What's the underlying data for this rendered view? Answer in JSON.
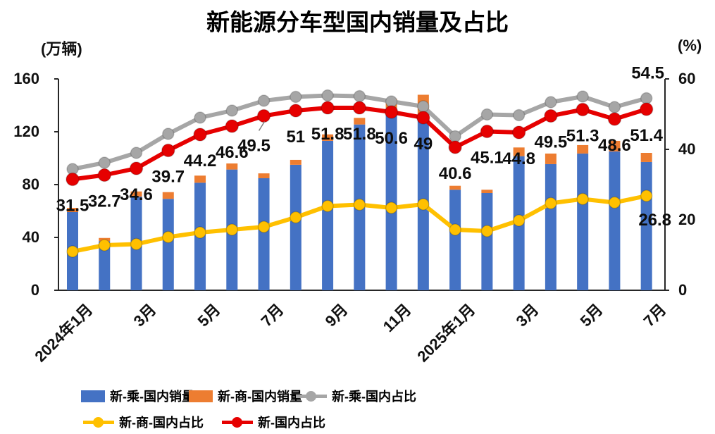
{
  "title": "新能源分车型国内销量及占比",
  "left_axis": {
    "unit": "(万辆)",
    "ticks": [
      160,
      120,
      80,
      40,
      0
    ],
    "max": 160
  },
  "right_axis": {
    "unit": "(%)",
    "ticks": [
      60,
      40,
      20,
      0
    ],
    "max": 60
  },
  "x_axis": {
    "visible_labels": [
      {
        "index": 0,
        "text": "2024年1月"
      },
      {
        "index": 2,
        "text": "3月"
      },
      {
        "index": 4,
        "text": "5月"
      },
      {
        "index": 6,
        "text": "7月"
      },
      {
        "index": 8,
        "text": "9月"
      },
      {
        "index": 10,
        "text": "11月"
      },
      {
        "index": 12,
        "text": "2025年1月"
      },
      {
        "index": 14,
        "text": "3月"
      },
      {
        "index": 16,
        "text": "5月"
      },
      {
        "index": 18,
        "text": "7月"
      }
    ]
  },
  "chart_data": {
    "type": "bar",
    "subtype": "stacked bars with overlaid lines, dual axes",
    "n_points": 19,
    "x_range_note": "2024年1月 to 2025年7月, monthly",
    "left_axis_range": [
      0,
      160
    ],
    "right_axis_range": [
      0,
      60
    ],
    "grid": "off",
    "series": [
      {
        "name": "新-乘-国内销量",
        "type": "bar",
        "axis": "left",
        "color": "#4472c4",
        "values": [
          59.2,
          37.2,
          70.9,
          69.2,
          81.4,
          91.4,
          84.8,
          95.0,
          113.1,
          125.5,
          138.0,
          130.0,
          76.1,
          73.6,
          101.5,
          95.5,
          103.5,
          105.1,
          97.1
        ]
      },
      {
        "name": "新-商-国内销量",
        "type": "bar",
        "axis": "left",
        "color": "#ed7d31",
        "values": [
          3.2,
          2.4,
          3.9,
          5.1,
          5.4,
          4.6,
          3.7,
          3.7,
          4.9,
          5.0,
          7.0,
          18.0,
          3.0,
          2.5,
          6.6,
          8.0,
          6.4,
          8.0,
          6.9
        ]
      },
      {
        "name": "新-乘-国内占比",
        "type": "line",
        "axis": "right",
        "color": "#a6a6a6",
        "values": [
          34.4,
          36.2,
          39.0,
          44.4,
          49.0,
          51.0,
          53.8,
          54.9,
          55.3,
          55.1,
          53.6,
          52.2,
          43.7,
          49.9,
          49.7,
          53.4,
          55.0,
          52.0,
          54.5
        ],
        "last_label": "54.5"
      },
      {
        "name": "新-商-国内占比",
        "type": "line",
        "axis": "right",
        "color": "#ffc000",
        "values": [
          11.0,
          12.8,
          13.1,
          15.1,
          16.4,
          17.2,
          18.0,
          20.7,
          23.9,
          24.3,
          23.4,
          24.4,
          17.2,
          16.8,
          19.8,
          24.7,
          25.9,
          24.9,
          26.8
        ],
        "last_label": "26.8"
      },
      {
        "name": "新-国内占比",
        "type": "line",
        "axis": "right",
        "color": "#e60000",
        "values": [
          31.5,
          32.7,
          34.6,
          39.7,
          44.2,
          46.6,
          49.5,
          51,
          51.8,
          51.8,
          50.6,
          49,
          40.6,
          45.1,
          44.8,
          49.5,
          51.3,
          48.6,
          51.4
        ],
        "point_labels": [
          "31.5",
          "32.7",
          "34.6",
          "39.7",
          "44.2",
          "46.6",
          "49.5",
          "51",
          "51.8",
          "51.8",
          "50.6",
          "49",
          "40.6",
          "45.1",
          "44.8",
          "49.5",
          "51.3",
          "48.6",
          "51.4"
        ]
      }
    ]
  },
  "legend": {
    "rows": [
      [
        {
          "swatch": "bar",
          "color": "#4472c4",
          "label": "新-乘-国内销量"
        },
        {
          "swatch": "bar",
          "color": "#ed7d31",
          "label": "新-商-国内销量"
        },
        {
          "swatch": "line",
          "color": "#a6a6a6",
          "label": "新-乘-国内占比"
        }
      ],
      [
        {
          "swatch": "line",
          "color": "#ffc000",
          "label": "新-商-国内占比"
        },
        {
          "swatch": "line",
          "color": "#e60000",
          "label": "新-国内占比"
        }
      ]
    ]
  }
}
